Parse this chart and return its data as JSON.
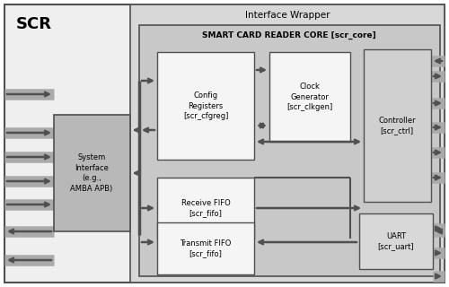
{
  "title": "SCR",
  "interface_wrapper_label": "Interface Wrapper",
  "core_label": "SMART CARD READER CORE [scr_core]",
  "colors": {
    "outer_bg": "#efefef",
    "wrapper_bg": "#d8d8d8",
    "core_bg": "#c8c8c8",
    "block_white": "#f5f5f5",
    "block_gray_si": "#b8b8b8",
    "block_gray_ctrl": "#d0d0d0",
    "block_gray_uart": "#d8d8d8",
    "arrow": "#505050",
    "border": "#505050",
    "text": "#000000"
  },
  "figsize": [
    5.0,
    3.2
  ],
  "dpi": 100
}
